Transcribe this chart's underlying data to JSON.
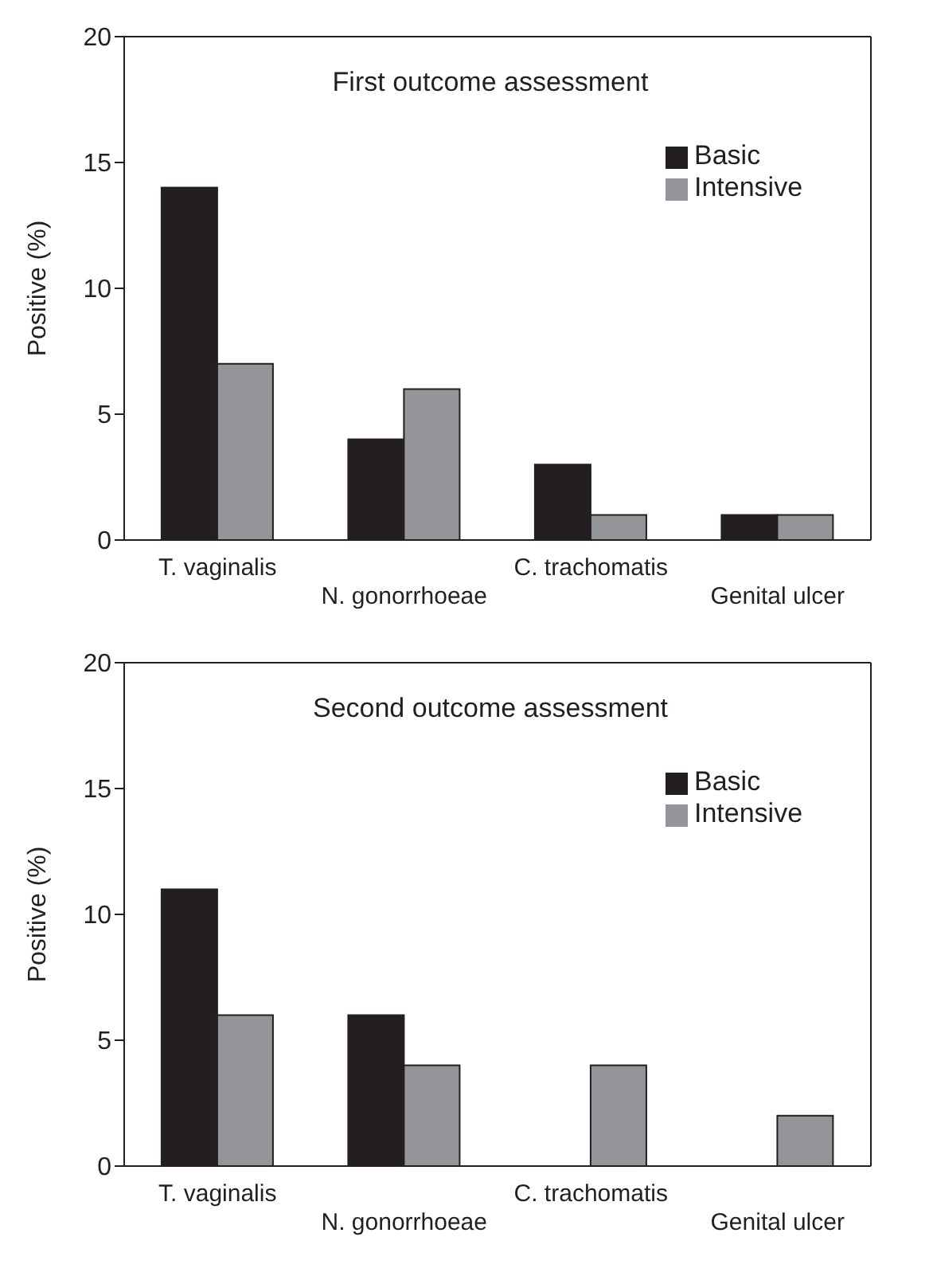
{
  "chart_data": [
    {
      "type": "bar",
      "title": "First outcome assessment",
      "ylabel": "Positive (%)",
      "categories": [
        "T. vaginalis",
        "N. gonorrhoeae",
        "C. trachomatis",
        "Genital ulcer"
      ],
      "series": [
        {
          "name": "Basic",
          "color": "#231f20",
          "values": [
            14,
            4,
            3,
            1
          ]
        },
        {
          "name": "Intensive",
          "color": "#939598",
          "values": [
            7,
            6,
            1,
            1
          ]
        }
      ],
      "ylim": [
        0,
        20
      ],
      "yticks": [
        0,
        5,
        10,
        15,
        20
      ],
      "grid": false,
      "legend": "top right"
    },
    {
      "type": "bar",
      "title": "Second outcome assessment",
      "ylabel": "Positive (%)",
      "categories": [
        "T. vaginalis",
        "N. gonorrhoeae",
        "C. trachomatis",
        "Genital ulcer"
      ],
      "series": [
        {
          "name": "Basic",
          "color": "#231f20",
          "values": [
            11,
            6,
            0,
            0
          ]
        },
        {
          "name": "Intensive",
          "color": "#939598",
          "values": [
            6,
            4,
            4,
            2
          ]
        }
      ],
      "ylim": [
        0,
        20
      ],
      "yticks": [
        0,
        5,
        10,
        15,
        20
      ],
      "grid": false,
      "legend": "top right"
    }
  ]
}
